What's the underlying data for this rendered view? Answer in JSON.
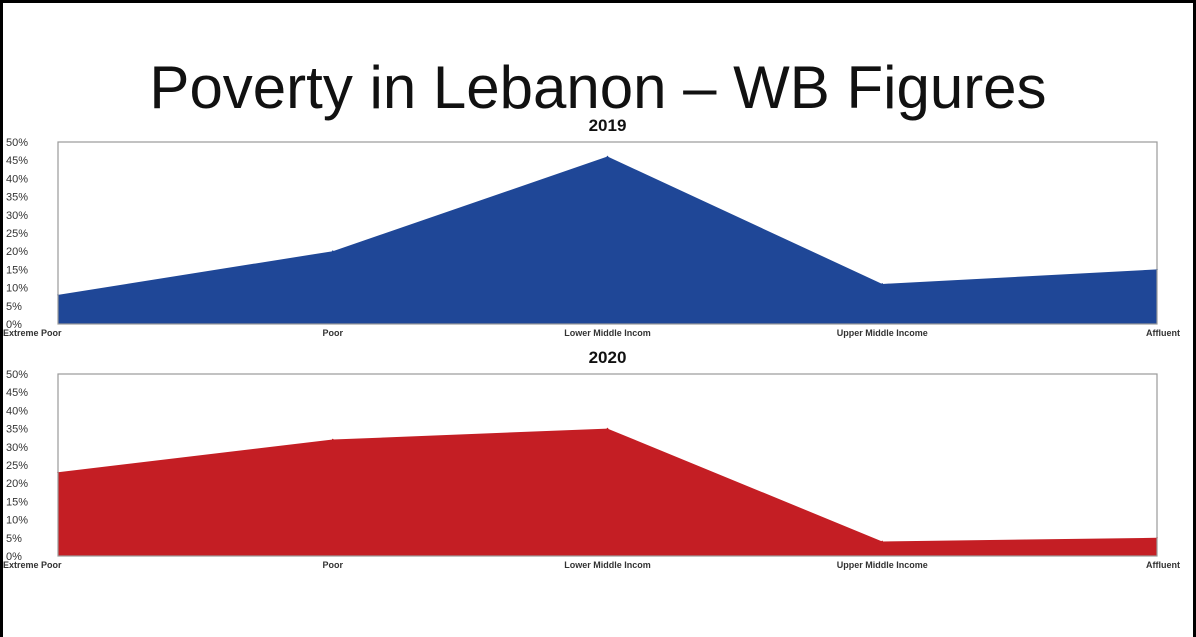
{
  "page": {
    "title": "Poverty in Lebanon – WB Figures"
  },
  "chart_data": [
    {
      "type": "area",
      "title": "2019",
      "categories": [
        "Extreme Poor",
        "Poor",
        "Lower Middle Incom",
        "Upper Middle Income",
        "Affluent"
      ],
      "values": [
        8,
        20,
        46,
        11,
        15
      ],
      "ylim": [
        0,
        50
      ],
      "yticks": [
        "0%",
        "5%",
        "10%",
        "15%",
        "20%",
        "25%",
        "30%",
        "35%",
        "40%",
        "45%",
        "50%"
      ],
      "color": "#1f4797"
    },
    {
      "type": "area",
      "title": "2020",
      "categories": [
        "Extreme Poor",
        "Poor",
        "Lower Middle Incom",
        "Upper Middle Income",
        "Affluent"
      ],
      "values": [
        23,
        32,
        35,
        4,
        5
      ],
      "ylim": [
        0,
        50
      ],
      "yticks": [
        "0%",
        "5%",
        "10%",
        "15%",
        "20%",
        "25%",
        "30%",
        "35%",
        "40%",
        "45%",
        "50%"
      ],
      "color": "#c41e24"
    }
  ]
}
